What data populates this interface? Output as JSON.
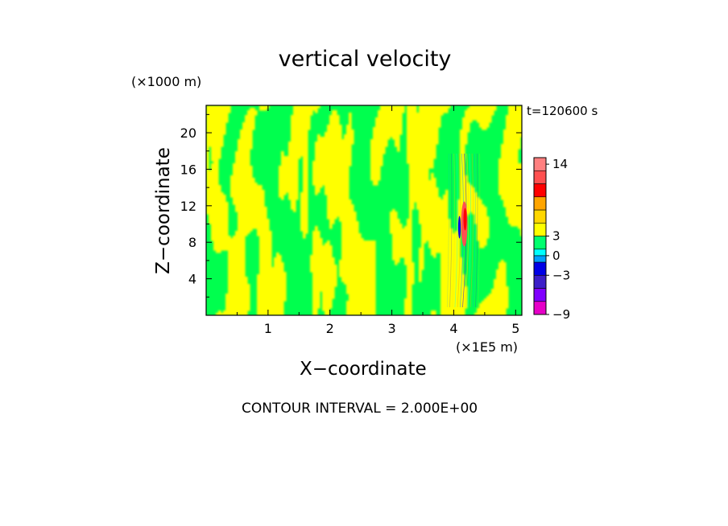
{
  "chart_data": {
    "type": "heatmap",
    "title": "vertical velocity",
    "xlabel": "X−coordinate",
    "ylabel": "Z−coordinate",
    "x_unit": "(×1E5 m)",
    "y_unit": "(×1000 m)",
    "time_label": "t=120600 s",
    "footer": "CONTOUR INTERVAL = 2.000E+00",
    "xlim": [
      0,
      5.1
    ],
    "ylim": [
      0,
      23
    ],
    "x_ticks": [
      1,
      2,
      3,
      4,
      5
    ],
    "y_ticks": [
      4,
      8,
      12,
      16,
      20
    ],
    "grid": false,
    "colorbar": {
      "levels": [
        -9,
        -7,
        -5,
        -3,
        -1,
        0,
        1,
        3,
        5,
        7,
        9,
        11,
        13,
        15
      ],
      "colors": [
        "#e600c8",
        "#8000ff",
        "#3c1ec8",
        "#0000e6",
        "#00a0ff",
        "#00ffff",
        "#00ff6e",
        "#ffff00",
        "#ffd700",
        "#ffa500",
        "#ff0000",
        "#ff5050",
        "#ff8080",
        "#ffb4b4"
      ],
      "tick_labels": [
        {
          "value": -9,
          "label": "−9"
        },
        {
          "value": -3,
          "label": "−3"
        },
        {
          "value": 0,
          "label": "0"
        },
        {
          "value": 3,
          "label": "3"
        },
        {
          "value": 14,
          "label": "14"
        }
      ]
    },
    "field": {
      "dominant_colors": [
        "#00ff4e",
        "#ffff00"
      ],
      "updraft_center_x": 4.17,
      "updraft_center_z": 10,
      "updraft_peak": 13
    }
  }
}
